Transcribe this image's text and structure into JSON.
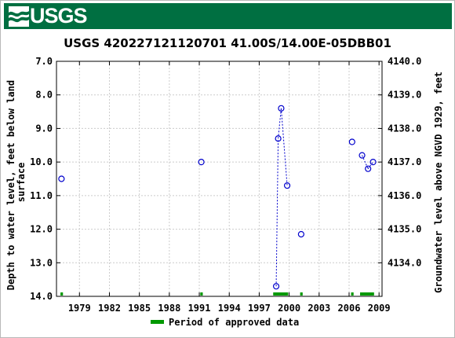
{
  "logo": {
    "text": "USGS"
  },
  "colors": {
    "banner": "#006f41",
    "series": "#0000cc",
    "approved": "#009900"
  },
  "chart_data": {
    "type": "scatter",
    "title": "USGS 420227121120701 41.00S/14.00E-05DBB01",
    "ylabel_left": "Depth to water level, feet below land surface",
    "ylabel_left_lines": [
      "Depth to water level, feet below land",
      "surface"
    ],
    "ylabel_right": "Groundwater level above NGVD 1929, feet",
    "xlim": [
      1976.7,
      2009.3
    ],
    "ylim_left": [
      7.0,
      14.0
    ],
    "ylim_left_inverted": true,
    "ylim_right": [
      4133.0,
      4140.0
    ],
    "x_ticks": [
      "1979",
      "1982",
      "1985",
      "1988",
      "1991",
      "1994",
      "1997",
      "2000",
      "2003",
      "2006",
      "2009"
    ],
    "x_tick_values": [
      1979,
      1982,
      1985,
      1988,
      1991,
      1994,
      1997,
      2000,
      2003,
      2006,
      2009
    ],
    "y_left_ticks": [
      "7.0",
      "8.0",
      "9.0",
      "10.0",
      "11.0",
      "12.0",
      "13.0",
      "14.0"
    ],
    "y_left_tick_values": [
      7,
      8,
      9,
      10,
      11,
      12,
      13,
      14
    ],
    "y_right_ticks": [
      "4134.0",
      "4135.0",
      "4136.0",
      "4137.0",
      "4138.0",
      "4139.0",
      "4140.0"
    ],
    "y_right_tick_values": [
      4134,
      4135,
      4136,
      4137,
      4138,
      4139,
      4140
    ],
    "points": [
      {
        "x": 1977.2,
        "y": 10.5
      },
      {
        "x": 1991.2,
        "y": 10.0
      },
      {
        "x": 1998.7,
        "y": 13.7
      },
      {
        "x": 1998.9,
        "y": 9.3
      },
      {
        "x": 1999.2,
        "y": 8.4
      },
      {
        "x": 1999.8,
        "y": 10.7
      },
      {
        "x": 2001.2,
        "y": 12.15
      },
      {
        "x": 2006.3,
        "y": 9.4
      },
      {
        "x": 2007.3,
        "y": 9.8
      },
      {
        "x": 2007.9,
        "y": 10.2
      },
      {
        "x": 2008.4,
        "y": 10.0
      }
    ],
    "connected_segments": [
      [
        2,
        3
      ],
      [
        3,
        4
      ],
      [
        4,
        5
      ],
      [
        8,
        9
      ],
      [
        9,
        10
      ]
    ],
    "approved_periods": [
      [
        1977.1,
        1977.35
      ],
      [
        1991.1,
        1991.35
      ],
      [
        1998.4,
        1999.9
      ],
      [
        2001.1,
        2001.35
      ],
      [
        2006.2,
        2006.45
      ],
      [
        2007.1,
        2008.5
      ]
    ],
    "legend": {
      "label": "Period of approved data",
      "placement": "bottom-center"
    },
    "grid": true
  }
}
